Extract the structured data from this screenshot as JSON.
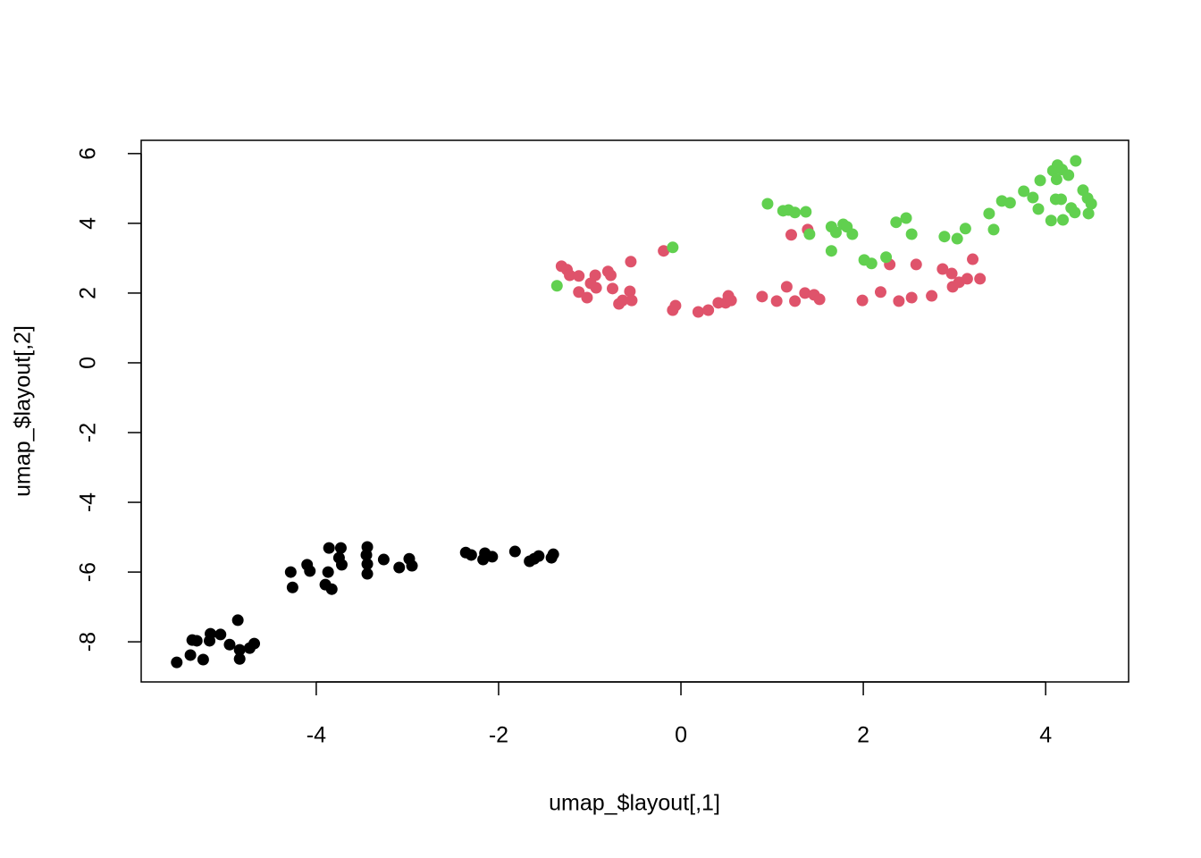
{
  "chart_data": {
    "type": "scatter",
    "xlabel": "umap_$layout[,1]",
    "ylabel": "umap_$layout[,2]",
    "xlim": [
      -5.92,
      4.91
    ],
    "ylim": [
      -9.15,
      6.38
    ],
    "xticks": [
      -4,
      -2,
      0,
      2,
      4
    ],
    "yticks": [
      -8,
      -6,
      -4,
      -2,
      0,
      2,
      4,
      6
    ],
    "series": [
      {
        "color": "#000000",
        "x": [
          -5.53,
          -5.38,
          -5.36,
          -5.31,
          -5.24,
          -5.17,
          -5.16,
          -5.05,
          -4.95,
          -4.86,
          -4.84,
          -4.84,
          -4.73,
          -4.68,
          -4.28,
          -4.26,
          -4.1,
          -4.07,
          -3.9,
          -3.87,
          -3.86,
          -3.83,
          -3.75,
          -3.73,
          -3.72,
          -3.44,
          -3.45,
          -3.44,
          -3.44,
          -3.26,
          -3.09,
          -2.98,
          -2.95,
          -2.36,
          -2.3,
          -2.17,
          -2.15,
          -2.07,
          -1.82,
          -1.66,
          -1.61,
          -1.56,
          -1.42,
          -1.4
        ],
        "values": [
          -8.59,
          -8.38,
          -7.95,
          -7.97,
          -8.51,
          -7.97,
          -7.77,
          -7.79,
          -8.08,
          -7.38,
          -8.49,
          -8.23,
          -8.18,
          -8.05,
          -6.0,
          -6.44,
          -5.79,
          -5.97,
          -6.36,
          -6.0,
          -5.31,
          -6.49,
          -5.59,
          -5.31,
          -5.79,
          -5.28,
          -5.51,
          -5.77,
          -6.05,
          -5.64,
          -5.87,
          -5.62,
          -5.82,
          -5.44,
          -5.51,
          -5.64,
          -5.46,
          -5.56,
          -5.41,
          -5.69,
          -5.62,
          -5.54,
          -5.59,
          -5.49
        ]
      },
      {
        "color": "#df536b",
        "x": [
          -1.31,
          -1.25,
          -1.22,
          -1.12,
          -1.12,
          -1.03,
          -0.99,
          -0.94,
          -0.93,
          -0.8,
          -0.77,
          -0.75,
          -0.68,
          -0.64,
          -0.56,
          -0.55,
          -0.54,
          -0.19,
          -0.09,
          -0.06,
          0.19,
          0.3,
          0.41,
          0.49,
          0.52,
          0.55,
          0.89,
          1.05,
          1.16,
          1.21,
          1.25,
          1.36,
          1.39,
          1.46,
          1.52,
          1.99,
          2.19,
          2.29,
          2.39,
          2.53,
          2.58,
          2.75,
          2.87,
          2.97,
          2.98,
          3.05,
          3.14,
          3.2,
          3.28
        ],
        "values": [
          2.77,
          2.67,
          2.51,
          2.49,
          2.03,
          1.87,
          2.28,
          2.51,
          2.15,
          2.62,
          2.51,
          2.13,
          1.69,
          1.79,
          2.05,
          2.9,
          1.79,
          3.21,
          1.51,
          1.64,
          1.46,
          1.51,
          1.72,
          1.72,
          1.92,
          1.79,
          1.9,
          1.77,
          2.18,
          3.67,
          1.77,
          2.0,
          3.82,
          1.95,
          1.82,
          1.79,
          2.03,
          2.82,
          1.77,
          1.87,
          2.82,
          1.92,
          2.69,
          2.56,
          2.18,
          2.31,
          2.41,
          2.97,
          2.41
        ]
      },
      {
        "color": "#61d04f",
        "x": [
          -1.36,
          -0.09,
          0.95,
          1.12,
          1.18,
          1.25,
          1.37,
          1.41,
          1.65,
          1.65,
          1.7,
          1.78,
          1.82,
          1.88,
          2.01,
          2.09,
          2.25,
          2.36,
          2.47,
          2.53,
          2.89,
          3.03,
          3.12,
          3.38,
          3.43,
          3.52,
          3.61,
          3.76,
          3.86,
          3.92,
          3.94,
          4.06,
          4.08,
          4.11,
          4.12,
          4.13,
          4.17,
          4.18,
          4.19,
          4.25,
          4.28,
          4.32,
          4.33,
          4.41,
          4.46,
          4.47,
          4.5
        ],
        "values": [
          2.21,
          3.31,
          4.56,
          4.36,
          4.38,
          4.31,
          4.33,
          3.69,
          3.21,
          3.9,
          3.74,
          3.97,
          3.9,
          3.69,
          2.95,
          2.85,
          3.03,
          4.03,
          4.15,
          3.69,
          3.62,
          3.56,
          3.85,
          4.28,
          3.82,
          4.64,
          4.59,
          4.92,
          4.74,
          4.41,
          5.23,
          4.08,
          5.51,
          4.69,
          5.26,
          5.67,
          4.69,
          5.54,
          4.1,
          5.38,
          4.44,
          4.31,
          5.79,
          4.95,
          4.72,
          4.28,
          4.56
        ]
      }
    ]
  }
}
